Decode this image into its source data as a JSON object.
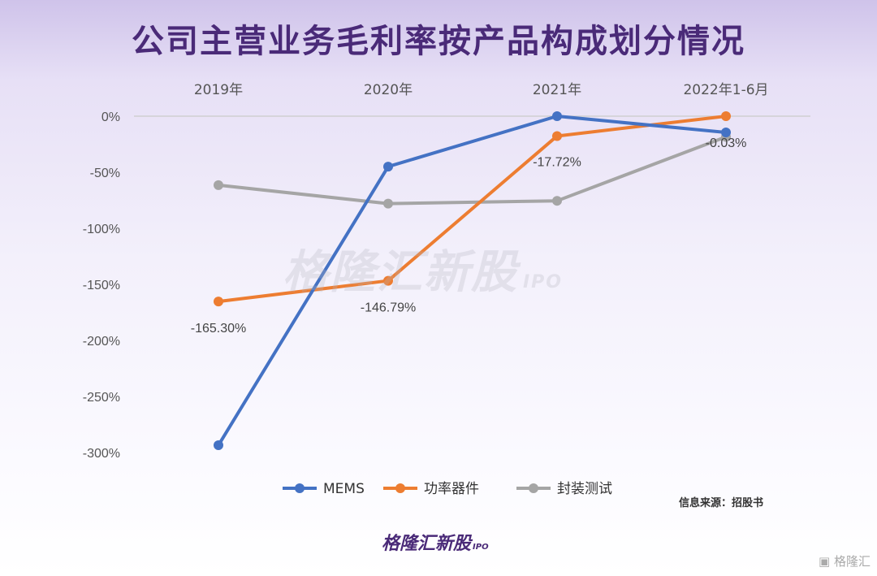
{
  "title": "公司主营业务毛利率按产品构成划分情况",
  "source_note": "信息来源：招股书",
  "watermark": {
    "text": "格隆汇新股",
    "sub": "IPO"
  },
  "brand_bottom": {
    "text": "格隆汇新股",
    "sub": "IPO"
  },
  "brand_corner": "格隆汇",
  "chart_data": {
    "type": "line",
    "title": "公司主营业务毛利率按产品构成划分情况",
    "categories": [
      "2019年",
      "2020年",
      "2021年",
      "2022年1-6月"
    ],
    "y_ticks": [
      "0%",
      "-50%",
      "-100%",
      "-150%",
      "-200%",
      "-250%",
      "-300%"
    ],
    "ylim": [
      -300,
      0
    ],
    "x_axis_position": "top",
    "grid": false,
    "legend_position": "bottom",
    "series": [
      {
        "name": "MEMS",
        "color": "#4472c4",
        "values": [
          -293.5,
          -45.0,
          0.0,
          -14.5
        ],
        "labels": [
          "",
          "",
          "",
          ""
        ]
      },
      {
        "name": "功率器件",
        "color": "#ed7d31",
        "values": [
          -165.3,
          -146.79,
          -17.72,
          -0.03
        ],
        "labels": [
          "-165.30%",
          "-146.79%",
          "-17.72%",
          "-0.03%"
        ]
      },
      {
        "name": "封装测试",
        "color": "#a5a5a5",
        "values": [
          -61.5,
          -78.0,
          -75.5,
          -18.5
        ],
        "labels": [
          "",
          "",
          "",
          ""
        ]
      }
    ]
  }
}
